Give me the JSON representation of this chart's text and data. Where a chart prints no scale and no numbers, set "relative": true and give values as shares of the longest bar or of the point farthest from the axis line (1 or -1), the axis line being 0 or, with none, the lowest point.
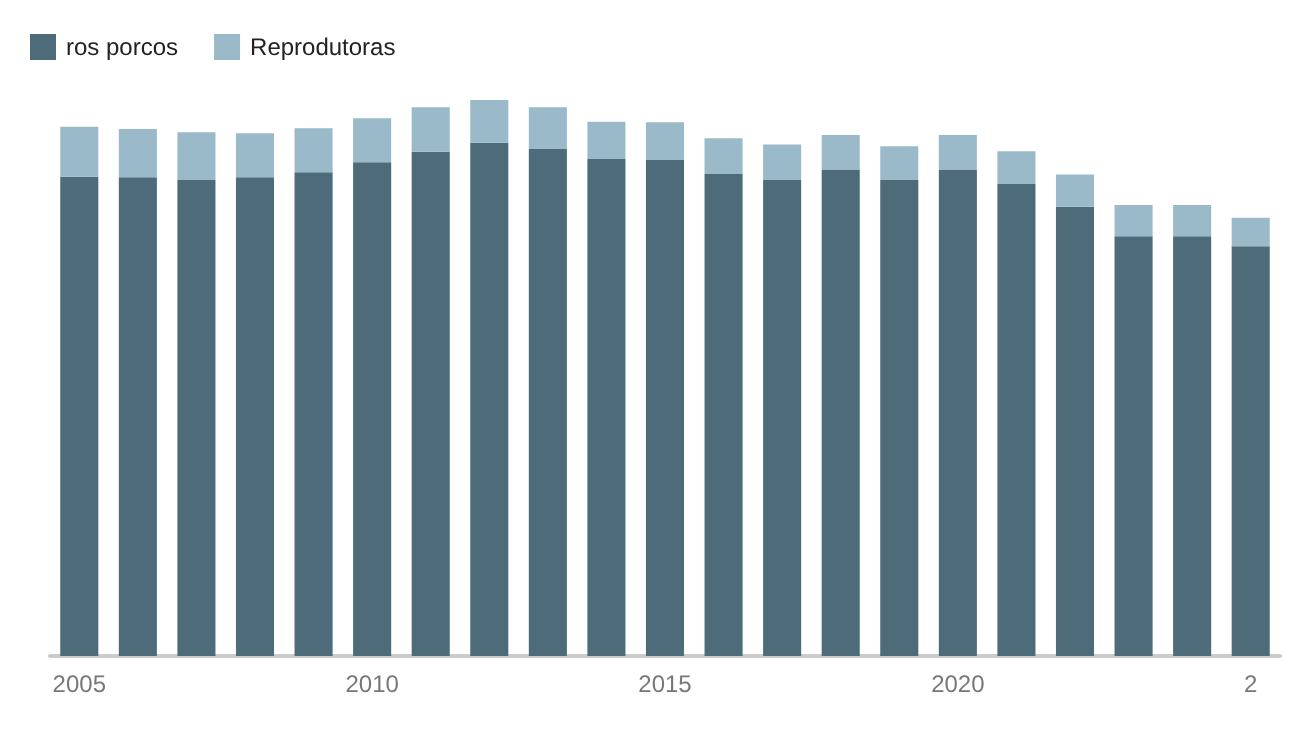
{
  "chart_data": {
    "type": "bar",
    "stacked": true,
    "relative": true,
    "legend": "top left",
    "categories": [
      "2005",
      null,
      null,
      null,
      null,
      "2010",
      null,
      null,
      null,
      null,
      "2015",
      null,
      null,
      null,
      null,
      "2020",
      null,
      null,
      null,
      null,
      "2"
    ],
    "series": [
      {
        "name": "ros porcos",
        "color": "#4d6b79",
        "values": [
          0.862,
          0.861,
          0.857,
          0.861,
          0.87,
          0.888,
          0.907,
          0.923,
          0.912,
          0.894,
          0.893,
          0.867,
          0.857,
          0.875,
          0.856,
          0.875,
          0.849,
          0.808,
          0.755,
          0.755,
          0.737
        ]
      },
      {
        "name": "Reprodutoras",
        "color": "#9bbac9",
        "values": [
          0.09,
          0.087,
          0.085,
          0.079,
          0.079,
          0.079,
          0.08,
          0.077,
          0.075,
          0.067,
          0.067,
          0.064,
          0.063,
          0.062,
          0.061,
          0.062,
          0.059,
          0.058,
          0.056,
          0.056,
          0.051
        ]
      }
    ]
  }
}
